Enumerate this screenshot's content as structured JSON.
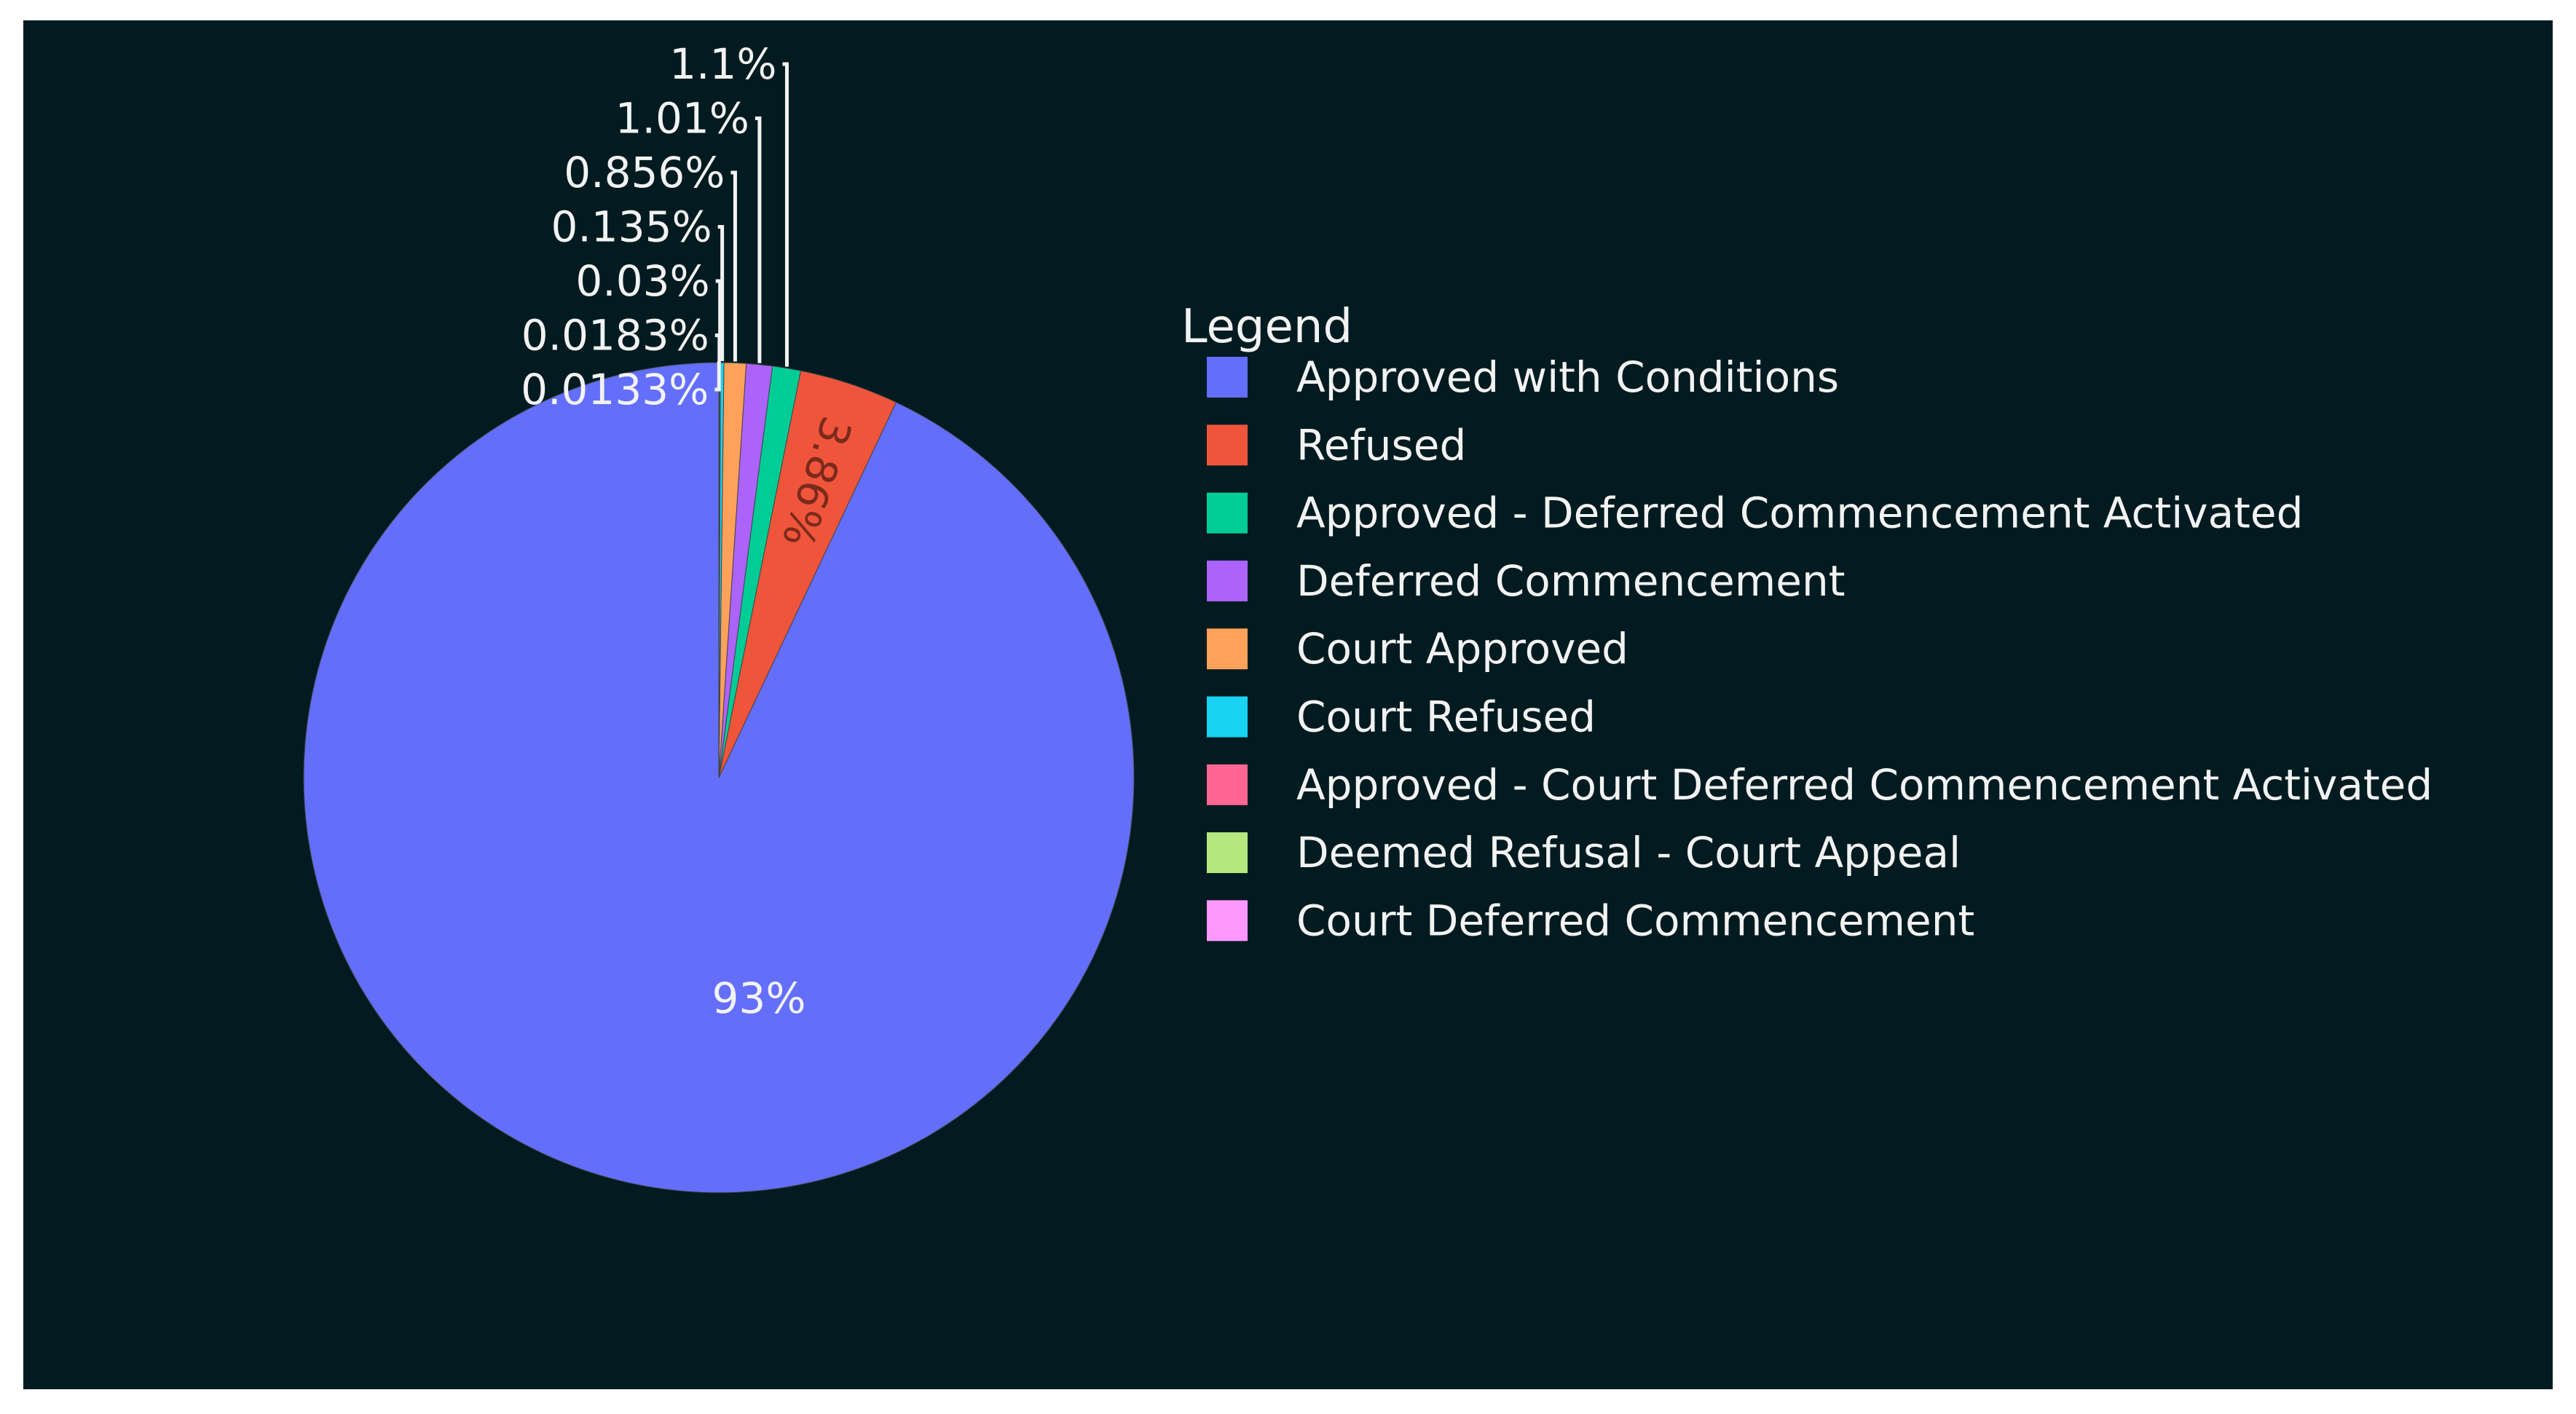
{
  "colors": {
    "background": "#011b20",
    "text": "#f2f2f2"
  },
  "chart_data": {
    "type": "pie",
    "legend": {
      "title": "Legend",
      "placement": "right"
    },
    "slices": [
      {
        "name": "Approved with Conditions",
        "value": 93,
        "label": "93%",
        "color": "#636efa"
      },
      {
        "name": "Refused",
        "value": 3.86,
        "label": "3.86%",
        "color": "#ef553b"
      },
      {
        "name": "Approved - Deferred Commencement Activated",
        "value": 1.1,
        "label": "1.1%",
        "color": "#00cc96"
      },
      {
        "name": "Deferred Commencement",
        "value": 1.01,
        "label": "1.01%",
        "color": "#ab63fa"
      },
      {
        "name": "Court Approved",
        "value": 0.856,
        "label": "0.856%",
        "color": "#ffa15a"
      },
      {
        "name": "Court Refused",
        "value": 0.135,
        "label": "0.135%",
        "color": "#19d3f3"
      },
      {
        "name": "Approved - Court Deferred Commencement Activated",
        "value": 0.03,
        "label": "0.03%",
        "color": "#ff6692"
      },
      {
        "name": "Deemed Refusal - Court Appeal",
        "value": 0.0183,
        "label": "0.0183%",
        "color": "#b6e880"
      },
      {
        "name": "Court Deferred Commencement",
        "value": 0.0133,
        "label": "0.0133%",
        "color": "#ff97ff"
      }
    ]
  }
}
